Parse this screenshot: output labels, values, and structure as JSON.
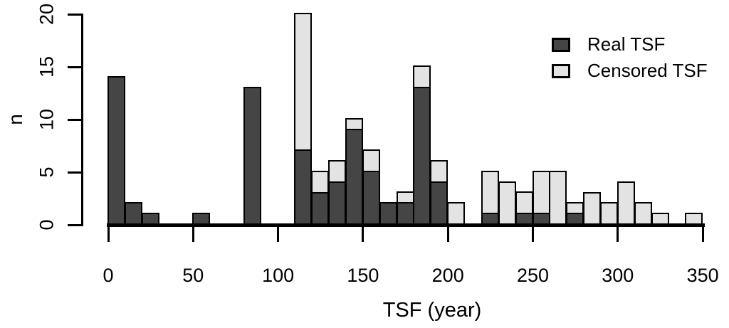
{
  "chart_data": {
    "type": "bar",
    "variant": "stacked-histogram",
    "title": "",
    "xlabel": "TSF (year)",
    "ylabel": "n",
    "xlim": [
      0,
      350
    ],
    "ylim": [
      0,
      20
    ],
    "x_ticks": [
      0,
      50,
      100,
      150,
      200,
      250,
      300,
      350
    ],
    "y_ticks": [
      0,
      5,
      10,
      15,
      20
    ],
    "bin_width": 10,
    "grid": false,
    "legend_position": "top-right",
    "legend": [
      {
        "key": "real",
        "label": "Real TSF",
        "color": "#454545"
      },
      {
        "key": "censored",
        "label": "Censored TSF",
        "color": "#E3E3E3"
      }
    ],
    "series_order": [
      "real",
      "censored"
    ],
    "bins": [
      {
        "x0": 0,
        "real": 14,
        "censored": 0
      },
      {
        "x0": 10,
        "real": 2,
        "censored": 0
      },
      {
        "x0": 20,
        "real": 1,
        "censored": 0
      },
      {
        "x0": 50,
        "real": 1,
        "censored": 0
      },
      {
        "x0": 80,
        "real": 13,
        "censored": 0
      },
      {
        "x0": 110,
        "real": 7,
        "censored": 13
      },
      {
        "x0": 120,
        "real": 3,
        "censored": 2
      },
      {
        "x0": 130,
        "real": 4,
        "censored": 2
      },
      {
        "x0": 140,
        "real": 9,
        "censored": 1
      },
      {
        "x0": 150,
        "real": 5,
        "censored": 2
      },
      {
        "x0": 160,
        "real": 2,
        "censored": 0
      },
      {
        "x0": 170,
        "real": 2,
        "censored": 1
      },
      {
        "x0": 180,
        "real": 13,
        "censored": 2
      },
      {
        "x0": 190,
        "real": 4,
        "censored": 2
      },
      {
        "x0": 200,
        "real": 0,
        "censored": 2
      },
      {
        "x0": 220,
        "real": 1,
        "censored": 4
      },
      {
        "x0": 230,
        "real": 0,
        "censored": 4
      },
      {
        "x0": 240,
        "real": 1,
        "censored": 2
      },
      {
        "x0": 250,
        "real": 1,
        "censored": 4
      },
      {
        "x0": 260,
        "real": 0,
        "censored": 5
      },
      {
        "x0": 270,
        "real": 1,
        "censored": 1
      },
      {
        "x0": 280,
        "real": 0,
        "censored": 3
      },
      {
        "x0": 290,
        "real": 0,
        "censored": 2
      },
      {
        "x0": 300,
        "real": 0,
        "censored": 4
      },
      {
        "x0": 310,
        "real": 0,
        "censored": 2
      },
      {
        "x0": 320,
        "real": 0,
        "censored": 1
      },
      {
        "x0": 340,
        "real": 0,
        "censored": 1
      }
    ]
  },
  "colors": {
    "real": "#454545",
    "censored": "#E3E3E3",
    "axis": "#000000",
    "background": "#FFFFFF"
  }
}
